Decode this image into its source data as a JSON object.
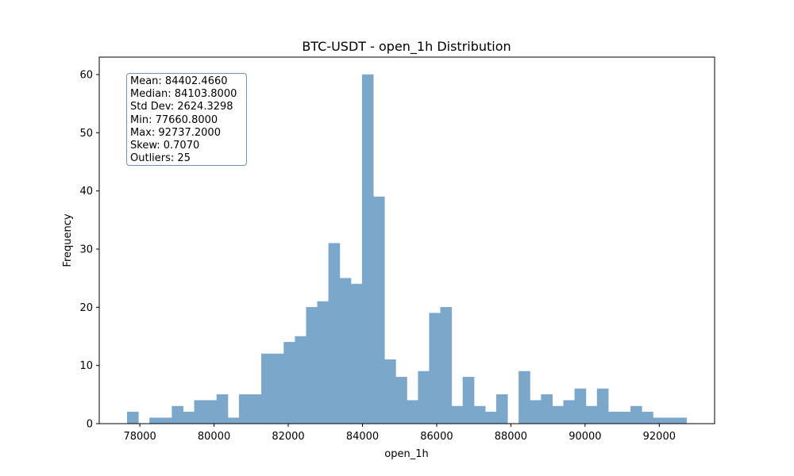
{
  "chart_data": {
    "type": "bar",
    "title": "BTC-USDT - open_1h Distribution",
    "xlabel": "open_1h",
    "ylabel": "Frequency",
    "bin_start": 77660.8,
    "bin_width": 301.53,
    "counts": [
      2,
      0,
      1,
      1,
      3,
      2,
      4,
      4,
      5,
      1,
      5,
      5,
      12,
      12,
      14,
      15,
      20,
      21,
      31,
      25,
      24,
      60,
      39,
      11,
      8,
      4,
      9,
      19,
      20,
      3,
      8,
      3,
      2,
      5,
      0,
      9,
      4,
      5,
      3,
      4,
      6,
      3,
      6,
      2,
      2,
      3,
      2,
      1,
      1,
      1
    ],
    "xlim": [
      76906,
      93491
    ],
    "ylim": [
      0,
      63
    ],
    "xticks": [
      78000,
      80000,
      82000,
      84000,
      86000,
      88000,
      90000,
      92000
    ],
    "yticks": [
      0,
      10,
      20,
      30,
      40,
      50,
      60
    ],
    "bar_color": "#7ba7cb",
    "grid": false
  },
  "stats": {
    "lines": [
      "Mean: 84402.4660",
      "Median: 84103.8000",
      "Std Dev: 2624.3298",
      "Min: 77660.8000",
      "Max: 92737.2000",
      "Skew: 0.7070",
      "Outliers: 25"
    ]
  }
}
